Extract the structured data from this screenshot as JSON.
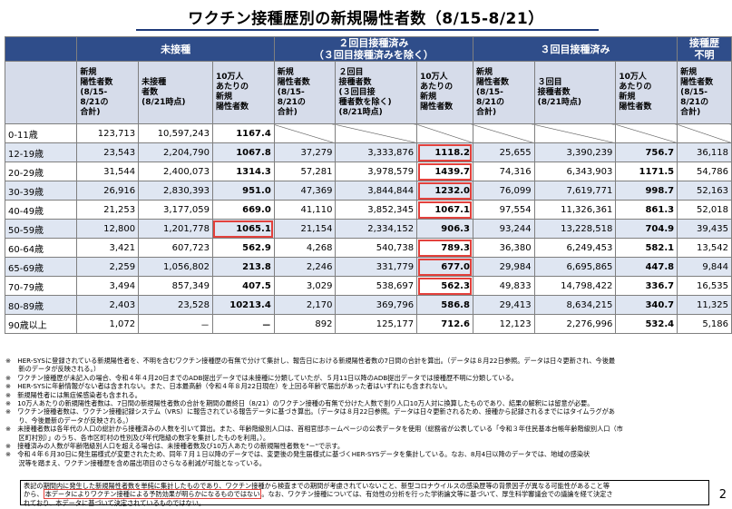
{
  "title": "ワクチン接種歴別の新規陽性者数（8/15-8/21）",
  "groups": {
    "unvaccinated": "未接種",
    "second_line1": "２回目接種済み",
    "second_line2": "（３回目接種済みを除く）",
    "third": "３回目接種済み",
    "unknown_line1": "接種歴",
    "unknown_line2": "不明"
  },
  "subheaders": {
    "new_cases": "新規\n陽性者数\n(8/15-\n8/21の\n合計)",
    "unvac_count": "未接種\n者数\n(8/21時点)",
    "per100k": "10万人\nあたりの\n新規\n陽性者数",
    "second_count": "２回目\n接種者数\n(３回目接\n種者数を除く)\n(8/21時点)",
    "third_count": "３回目\n接種者数\n(8/21時点)"
  },
  "rows": [
    {
      "age": "0-11歳",
      "u_new": "123,713",
      "u_pop": "10,597,243",
      "u_rate": "1167.4",
      "s_new": "",
      "s_pop": "",
      "s_rate": "",
      "t_new": "",
      "t_pop": "",
      "t_rate": "",
      "unk": ""
    },
    {
      "age": "12-19歳",
      "u_new": "23,543",
      "u_pop": "2,204,790",
      "u_rate": "1067.8",
      "s_new": "37,279",
      "s_pop": "3,333,876",
      "s_rate": "1118.2",
      "t_new": "25,655",
      "t_pop": "3,390,239",
      "t_rate": "756.7",
      "unk": "36,118"
    },
    {
      "age": "20-29歳",
      "u_new": "31,544",
      "u_pop": "2,400,073",
      "u_rate": "1314.3",
      "s_new": "57,281",
      "s_pop": "3,978,579",
      "s_rate": "1439.7",
      "t_new": "74,316",
      "t_pop": "6,343,903",
      "t_rate": "1171.5",
      "unk": "54,786"
    },
    {
      "age": "30-39歳",
      "u_new": "26,916",
      "u_pop": "2,830,393",
      "u_rate": "951.0",
      "s_new": "47,369",
      "s_pop": "3,844,844",
      "s_rate": "1232.0",
      "t_new": "76,099",
      "t_pop": "7,619,771",
      "t_rate": "998.7",
      "unk": "52,163"
    },
    {
      "age": "40-49歳",
      "u_new": "21,253",
      "u_pop": "3,177,059",
      "u_rate": "669.0",
      "s_new": "41,110",
      "s_pop": "3,852,345",
      "s_rate": "1067.1",
      "t_new": "97,554",
      "t_pop": "11,326,361",
      "t_rate": "861.3",
      "unk": "52,018"
    },
    {
      "age": "50-59歳",
      "u_new": "12,800",
      "u_pop": "1,201,778",
      "u_rate": "1065.1",
      "s_new": "21,154",
      "s_pop": "2,334,152",
      "s_rate": "906.3",
      "t_new": "93,244",
      "t_pop": "13,228,518",
      "t_rate": "704.9",
      "unk": "39,435"
    },
    {
      "age": "60-64歳",
      "u_new": "3,421",
      "u_pop": "607,723",
      "u_rate": "562.9",
      "s_new": "4,268",
      "s_pop": "540,738",
      "s_rate": "789.3",
      "t_new": "36,380",
      "t_pop": "6,249,453",
      "t_rate": "582.1",
      "unk": "13,542"
    },
    {
      "age": "65-69歳",
      "u_new": "2,259",
      "u_pop": "1,056,802",
      "u_rate": "213.8",
      "s_new": "2,246",
      "s_pop": "331,779",
      "s_rate": "677.0",
      "t_new": "29,984",
      "t_pop": "6,695,865",
      "t_rate": "447.8",
      "unk": "9,844"
    },
    {
      "age": "70-79歳",
      "u_new": "3,494",
      "u_pop": "857,349",
      "u_rate": "407.5",
      "s_new": "3,029",
      "s_pop": "538,697",
      "s_rate": "562.3",
      "t_new": "49,833",
      "t_pop": "14,798,422",
      "t_rate": "336.7",
      "unk": "16,535"
    },
    {
      "age": "80-89歳",
      "u_new": "2,403",
      "u_pop": "23,528",
      "u_rate": "10213.4",
      "s_new": "2,170",
      "s_pop": "369,796",
      "s_rate": "586.8",
      "t_new": "29,413",
      "t_pop": "8,634,215",
      "t_rate": "340.7",
      "unk": "11,325"
    },
    {
      "age": "90歳以上",
      "u_new": "1,072",
      "u_pop": "－",
      "u_rate": "－",
      "s_new": "892",
      "s_pop": "125,177",
      "s_rate": "712.6",
      "t_new": "12,123",
      "t_pop": "2,276,996",
      "t_rate": "532.4",
      "unk": "5,186"
    }
  ],
  "notes": [
    "※　HER-SYSに登録されている新規陽性者を、不明を含むワクチン接種歴の有無で分けて集計し、報告日における新規陽性者数の7日間の合計を算出。（データは８月22日参照。データは日々更新され、今後最",
    "　　新のデータが反映される。）",
    "※　ワクチン接種歴が未記入の場合、令和４年４月20日までのADB提出データでは未接種に分類していたが、５月11日以降のADB提出データでは接種歴不明に分類している。",
    "※　HER-SYSに年齢情報がない者は含まれない。また、日本最高齢（令和４年８月22日現在）を上回る年齢で届出があった者はいずれにも含まれない。",
    "※　新規陽性者には無症候感染者も含まれる。",
    "※　10万人あたりの新規陽性者数は、7日間の新規陽性者数の合計を期間の最終日（8/21）のワクチン接種の有無で分けた人数で割り人口10万人対に換算したものであり、結果の解釈には留意が必要。",
    "※　ワクチン接種者数は、ワクチン接種記録システム（VRS）に報告されている報告データに基づき算出。（データは８月22日参照。データは日々更新されるため、接種から記録されるまでにはタイムラグがあ",
    "　　り、今後最新のデータが反映される。）",
    "※　未接種者数は各年代の人口の総計から接種済みの人数を引いて算出。また、年齢階級別人口は、首相官邸ホームページの公表データを使用（総務省が公表している「令和３年住民基本台帳年齢階級別人口（市",
    "　　区町村別）」のうち、各市区町村の性別及び年代階級の数字を集計したものを利用。）。",
    "※　接種済みの人数が年齢階級別人口を超える場合は、未接種者数及び10万人あたりの新規陽性者数を\"－\"で示す。",
    "※　令和４年６月30日に発生届様式が変更されたため、同年７月１日以降のデータでは、変更後の発生届様式に基づくHER-SYSデータを集計している。なお、8月4日以降のデータでは、地域の感染状",
    "　　況等を踏まえ、ワクチン接種歴を含め届出項目のさらなる削減が可能となっている。"
  ],
  "bottom": {
    "p1": "表記の期間内に発生した新規陽性者数を単純に集計したものであり、ワクチン接種から検査までの期間が考慮されていないこと、新型コロナウイルスの感染歴等の背景因子が異なる可能性があること等",
    "p2a": "から、",
    "p2b": "本データによりワクチン接種による予防効果が明らかになるものではない",
    "p2c": "。なお、ワクチン接種については、有効性の分析を行った学術論文等に基づいて、厚生科学審議会での議論を経て決定さ",
    "p3": "れており、本データに基づいて決定されているものではない。"
  },
  "page_number": "2"
}
